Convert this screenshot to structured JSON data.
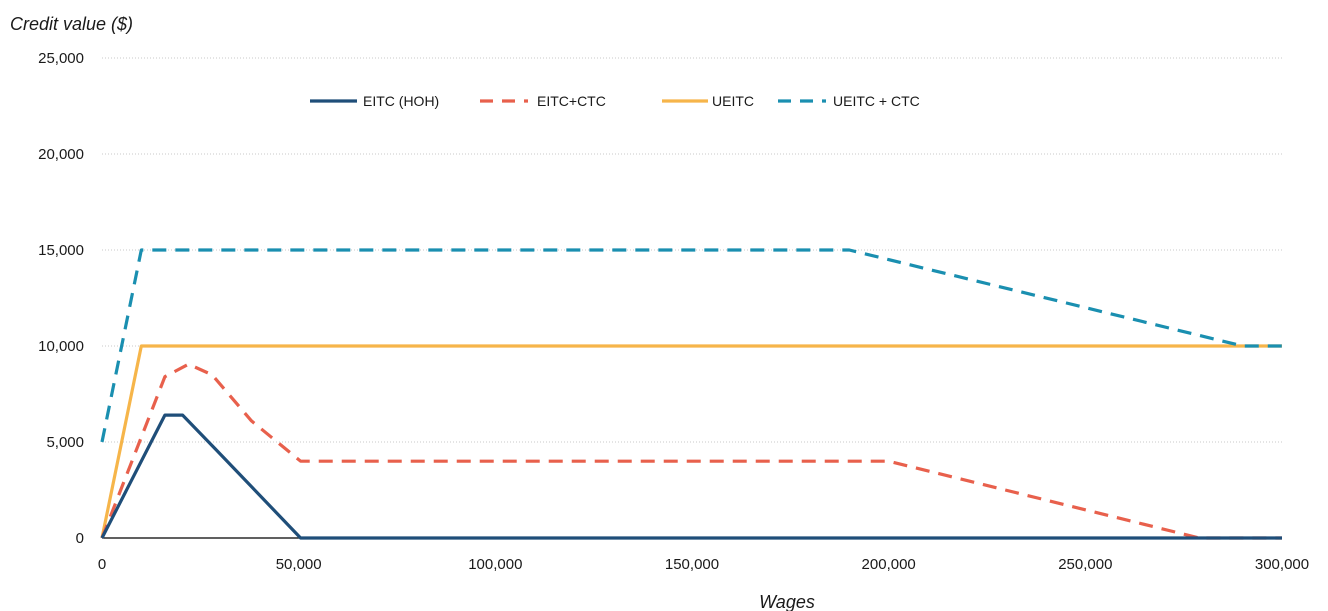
{
  "chart_data": {
    "type": "line",
    "title": "",
    "xlabel": "Wages",
    "ylabel": "Credit value ($)",
    "xlim": [
      0,
      300000
    ],
    "ylim": [
      0,
      25000
    ],
    "x_ticks": [
      0,
      50000,
      100000,
      150000,
      200000,
      250000,
      300000
    ],
    "x_tick_labels": [
      "0",
      "50,000",
      "100,000",
      "150,000",
      "200,000",
      "250,000",
      "300,000"
    ],
    "y_ticks": [
      0,
      5000,
      10000,
      15000,
      20000,
      25000
    ],
    "y_tick_labels": [
      "0",
      "5,000",
      "10,000",
      "15,000",
      "20,000",
      "25,000"
    ],
    "grid": "horizontal dotted",
    "legend_position": "top-center",
    "series": [
      {
        "name": "EITC (HOH)",
        "style": "solid",
        "color": "#1f4e79",
        "points": [
          [
            0,
            0
          ],
          [
            16000,
            6400
          ],
          [
            20500,
            6400
          ],
          [
            29000,
            4600
          ],
          [
            50500,
            0
          ],
          [
            300000,
            0
          ]
        ]
      },
      {
        "name": "EITC+CTC",
        "style": "dashed",
        "color": "#e8604c",
        "points": [
          [
            0,
            0
          ],
          [
            16000,
            8400
          ],
          [
            22000,
            9050
          ],
          [
            28000,
            8500
          ],
          [
            38000,
            6100
          ],
          [
            50500,
            4000
          ],
          [
            200000,
            4000
          ],
          [
            279000,
            0
          ],
          [
            300000,
            0
          ]
        ]
      },
      {
        "name": "UEITC",
        "style": "solid",
        "color": "#f6b54a",
        "points": [
          [
            0,
            0
          ],
          [
            10000,
            10000
          ],
          [
            300000,
            10000
          ]
        ]
      },
      {
        "name": "UEITC + CTC",
        "style": "dashed",
        "color": "#1a8fb0",
        "points": [
          [
            0,
            5000
          ],
          [
            10000,
            15000
          ],
          [
            190000,
            15000
          ],
          [
            290000,
            10000
          ],
          [
            300000,
            10000
          ]
        ]
      }
    ]
  }
}
